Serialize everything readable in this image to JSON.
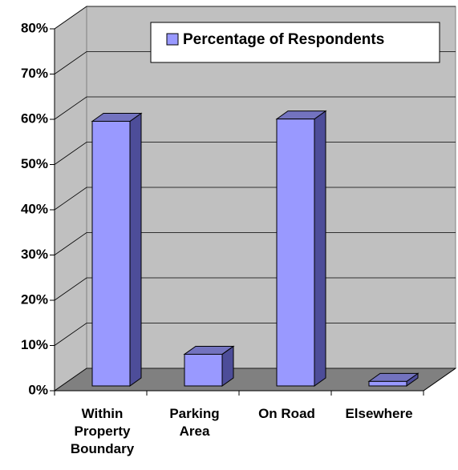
{
  "chart_data": {
    "type": "bar3d",
    "categories": [
      "Within Property Boundary",
      "Parking Area",
      "On Road",
      "Elsewhere"
    ],
    "series": [
      {
        "name": "Percentage of Respondents",
        "color": "#9999ff",
        "values": [
          58.5,
          7,
          59,
          1
        ]
      }
    ],
    "ylim": [
      0,
      80
    ],
    "yticks": [
      {
        "value": 0,
        "label": "0%"
      },
      {
        "value": 10,
        "label": "10%"
      },
      {
        "value": 20,
        "label": "20%"
      },
      {
        "value": 30,
        "label": "30%"
      },
      {
        "value": 40,
        "label": "40%"
      },
      {
        "value": 50,
        "label": "50%"
      },
      {
        "value": 60,
        "label": "60%"
      },
      {
        "value": 70,
        "label": "70%"
      },
      {
        "value": 80,
        "label": "80%"
      }
    ],
    "grid": true,
    "legend": "top-right"
  }
}
